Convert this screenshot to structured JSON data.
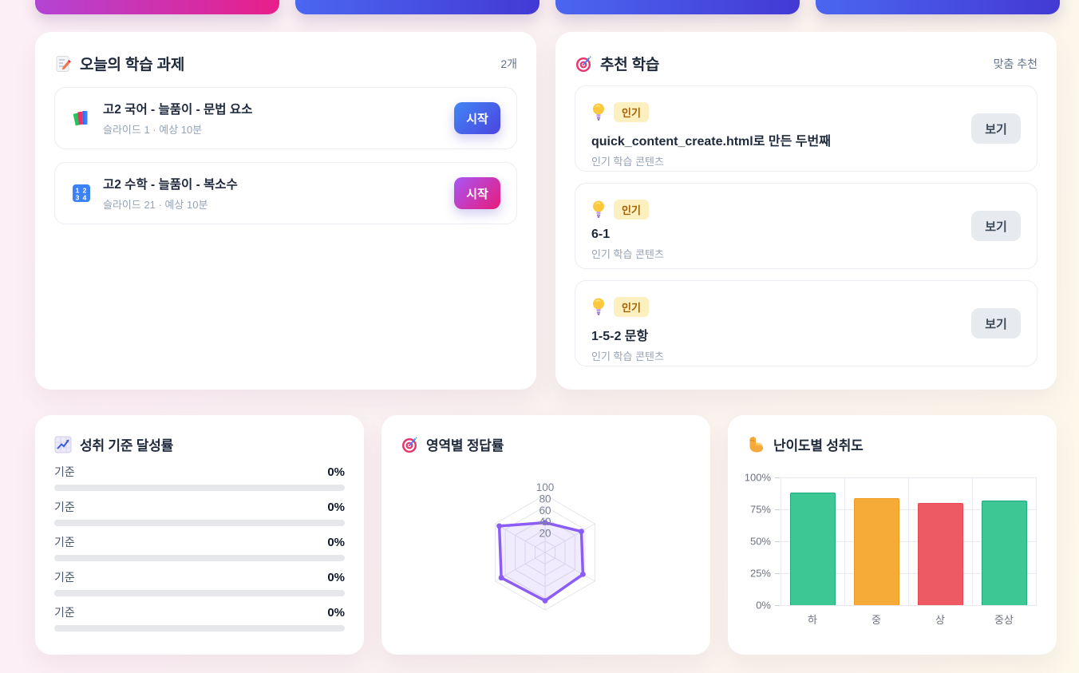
{
  "page": {
    "background_from": "#fdeff6",
    "background_to": "#fcf8ea"
  },
  "banner": {
    "buttons": [
      {
        "gradient_from": "#b344d3",
        "gradient_to": "#e81f8a"
      },
      {
        "gradient_from": "#4b66f1",
        "gradient_to": "#4339d4"
      },
      {
        "gradient_from": "#4b66f1",
        "gradient_to": "#4339d4"
      },
      {
        "gradient_from": "#4b66f1",
        "gradient_to": "#4339d4"
      }
    ]
  },
  "tasks": {
    "icon": "memo-icon",
    "title": "오늘의 학습 과제",
    "count": "2개",
    "items": [
      {
        "icon": "books-icon",
        "title": "고2 국어 - 늘품이 - 문법 요소",
        "subtitle": "슬라이드 1 · 예상 10분",
        "action_label": "시작",
        "action_gradient_from": "#4285f4",
        "action_gradient_to": "#4b44e0"
      },
      {
        "icon": "numbers-icon",
        "title": "고2 수학 - 늘품이 - 복소수",
        "subtitle": "슬라이드 21 · 예상 10분",
        "action_label": "시작",
        "action_gradient_from": "#a855f7",
        "action_gradient_to": "#e81c79"
      }
    ]
  },
  "recommendations": {
    "icon": "target-icon",
    "title": "추천 학습",
    "label": "맞춤 추천",
    "badge_bg": "#fdf0c0",
    "badge_color": "#a16207",
    "items": [
      {
        "icon": "bulb-icon",
        "badge": "인기",
        "title": "quick_content_create.html로 만든 두번째",
        "subtitle": "인기 학습 콘텐츠",
        "action_label": "보기"
      },
      {
        "icon": "bulb-icon",
        "badge": "인기",
        "title": "6-1",
        "subtitle": "인기 학습 콘텐츠",
        "action_label": "보기"
      },
      {
        "icon": "bulb-icon",
        "badge": "인기",
        "title": "1-5-2 문항",
        "subtitle": "인기 학습 콘텐츠",
        "action_label": "보기"
      }
    ]
  },
  "achievement": {
    "icon": "chart-up-icon",
    "title": "성취 기준 달성률",
    "track_color": "#e5e7eb",
    "rows": [
      {
        "label": "기준",
        "value": "0%",
        "percent": 0
      },
      {
        "label": "기준",
        "value": "0%",
        "percent": 0
      },
      {
        "label": "기준",
        "value": "0%",
        "percent": 0
      },
      {
        "label": "기준",
        "value": "0%",
        "percent": 0
      },
      {
        "label": "기준",
        "value": "0%",
        "percent": 0
      }
    ]
  },
  "chart_data": [
    {
      "type": "radar",
      "title": "영역별 정답률",
      "icon": "target-icon",
      "axes_count": 6,
      "axis_labels": [
        "",
        "",
        "",
        "",
        "",
        ""
      ],
      "values": [
        52,
        73,
        76,
        84,
        88,
        92
      ],
      "ticks": [
        20,
        40,
        60,
        80,
        100
      ],
      "max": 100,
      "stroke_color": "#8b5cf6",
      "fill_color": "rgba(139,92,246,0.12)",
      "grid_color": "#e4e4ec",
      "legend": "none"
    },
    {
      "type": "bar",
      "title": "난이도별 성취도",
      "icon": "biceps-icon",
      "categories": [
        "하",
        "중",
        "상",
        "중상"
      ],
      "values": [
        88,
        84,
        80,
        82
      ],
      "bar_colors": [
        "#3dc795",
        "#f6ab38",
        "#ee5a63",
        "#3dc795"
      ],
      "bar_borders": [
        "#1fa97c",
        "#ec9a20",
        "#e84752",
        "#1fa97c"
      ],
      "ytick_labels": [
        "0%",
        "25%",
        "50%",
        "75%",
        "100%"
      ],
      "ylim": [
        0,
        100
      ],
      "grid": true
    }
  ]
}
